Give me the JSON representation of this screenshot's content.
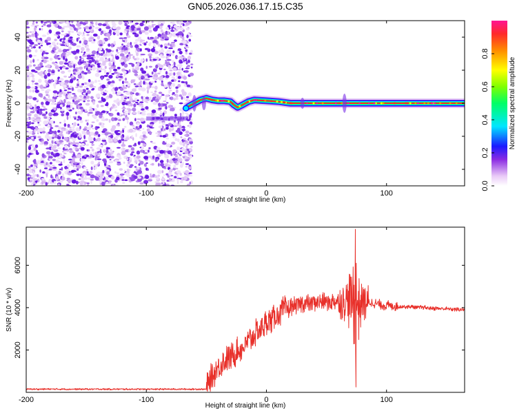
{
  "title": "GN05.2026.036.17.15.C35",
  "chart_data": [
    {
      "type": "heatmap",
      "name": "spectrogram",
      "xlabel": "Height of straight line (km)",
      "ylabel": "Frequency (Hz)",
      "xlim": [
        -200,
        165
      ],
      "ylim": [
        -50,
        50
      ],
      "xticks": [
        -200,
        -100,
        0,
        100
      ],
      "yticks": [
        -40,
        -20,
        0,
        20,
        40
      ],
      "noise_region_x": [
        -200,
        -62
      ],
      "carrier_track": [
        {
          "x": -65,
          "y": -2
        },
        {
          "x": -60,
          "y": 0
        },
        {
          "x": -55,
          "y": 2
        },
        {
          "x": -50,
          "y": 3
        },
        {
          "x": -45,
          "y": 2
        },
        {
          "x": -40,
          "y": 1.5
        },
        {
          "x": -35,
          "y": 1.5
        },
        {
          "x": -30,
          "y": 1
        },
        {
          "x": -27,
          "y": -1
        },
        {
          "x": -24,
          "y": -2.5
        },
        {
          "x": -20,
          "y": -1
        },
        {
          "x": -15,
          "y": 1
        },
        {
          "x": -10,
          "y": 2
        },
        {
          "x": 0,
          "y": 1.5
        },
        {
          "x": 10,
          "y": 1
        },
        {
          "x": 20,
          "y": 0
        },
        {
          "x": 40,
          "y": 0
        },
        {
          "x": 60,
          "y": 0
        },
        {
          "x": 100,
          "y": 0
        },
        {
          "x": 165,
          "y": 0
        }
      ],
      "colorbar": {
        "label": "Normalized spectral amplitude",
        "range": [
          0,
          1
        ],
        "ticks": [
          "0.0",
          "0.2",
          "0.4",
          "0.6",
          "0.8"
        ],
        "tick_values": [
          0.0,
          0.2,
          0.4,
          0.6,
          0.8
        ]
      }
    },
    {
      "type": "line",
      "name": "snr",
      "xlabel": "Height of straight line (km)",
      "ylabel": "SNR (10 * v/v)",
      "xlim": [
        -200,
        165
      ],
      "ylim": [
        0,
        7800
      ],
      "xticks": [
        -200,
        -100,
        0,
        100
      ],
      "yticks": [
        2000,
        4000,
        6000
      ],
      "color": "#e8302a",
      "envelope": [
        {
          "x": -200,
          "y": 150
        },
        {
          "x": -100,
          "y": 150
        },
        {
          "x": -50,
          "y": 150
        },
        {
          "x": -47,
          "y": 600
        },
        {
          "x": -40,
          "y": 1200
        },
        {
          "x": -30,
          "y": 1700
        },
        {
          "x": -20,
          "y": 2100
        },
        {
          "x": -10,
          "y": 2700
        },
        {
          "x": 0,
          "y": 3300
        },
        {
          "x": 10,
          "y": 3700
        },
        {
          "x": 20,
          "y": 4050
        },
        {
          "x": 30,
          "y": 4200
        },
        {
          "x": 40,
          "y": 4250
        },
        {
          "x": 60,
          "y": 4300
        },
        {
          "x": 80,
          "y": 4300
        },
        {
          "x": 100,
          "y": 4100
        },
        {
          "x": 130,
          "y": 4000
        },
        {
          "x": 165,
          "y": 3900
        }
      ],
      "peak": {
        "x": 74,
        "y": 7700
      },
      "trough": {
        "x": 74,
        "y": 250
      }
    }
  ]
}
